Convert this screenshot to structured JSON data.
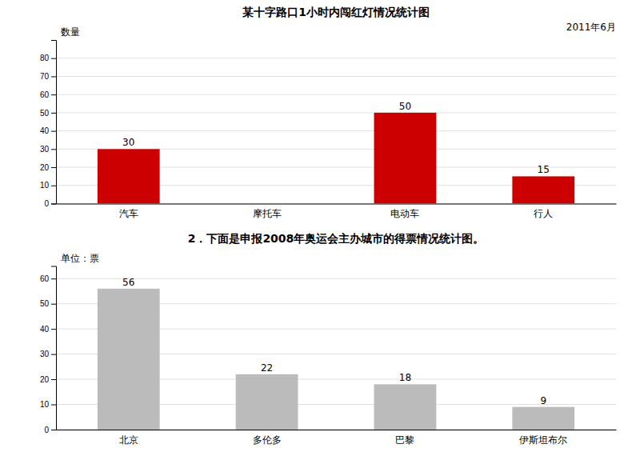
{
  "chart_data": [
    {
      "type": "bar",
      "title": "某十字路口1小时内闯红灯情况统计图",
      "subtitle": "2011年6月",
      "ylabel": "数量",
      "categories": [
        "汽车",
        "摩托车",
        "电动车",
        "行人"
      ],
      "values": [
        30,
        0,
        50,
        15
      ],
      "value_labels": [
        "30",
        null,
        "50",
        "15"
      ],
      "data_labels": true,
      "color": "#cc0000",
      "ylim": [
        0,
        90
      ],
      "yticks": [
        0,
        10,
        20,
        30,
        40,
        50,
        60,
        70,
        80
      ],
      "grid": true
    },
    {
      "type": "bar",
      "title": "2．下面是申报2008年奥运会主办城市的得票情况统计图。",
      "ylabel": "单位：票",
      "categories": [
        "北京",
        "多伦多",
        "巴黎",
        "伊斯坦布尔"
      ],
      "values": [
        56,
        22,
        18,
        9
      ],
      "data_labels": true,
      "color": "#bbbbbb",
      "ylim": [
        0,
        65
      ],
      "yticks": [
        0,
        10,
        20,
        30,
        40,
        50,
        60
      ],
      "grid": true
    }
  ]
}
